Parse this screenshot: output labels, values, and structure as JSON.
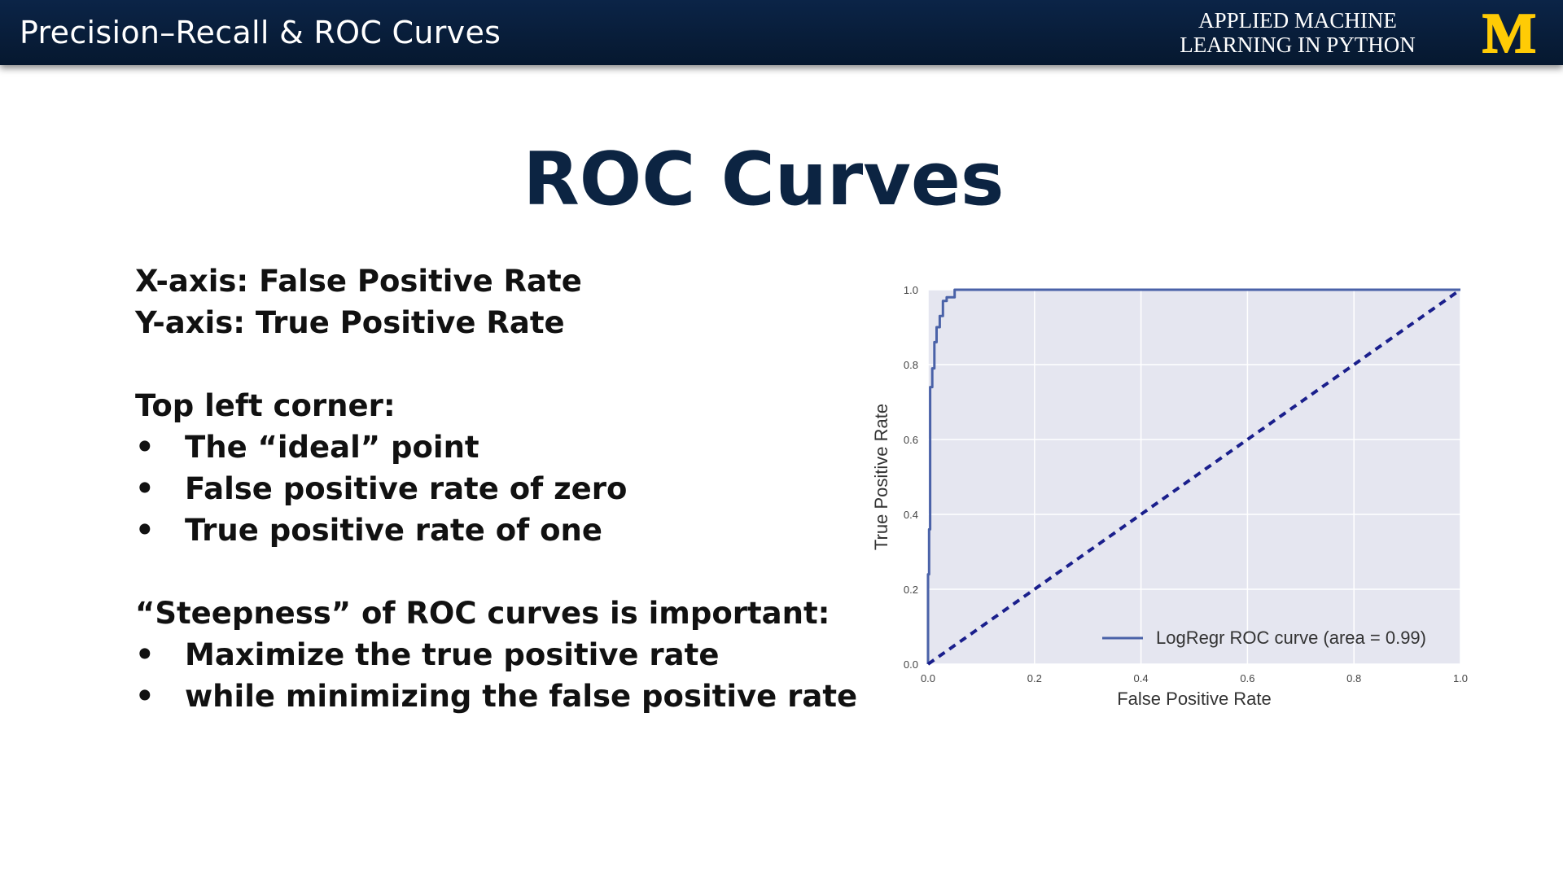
{
  "header": {
    "course_title": "Precision–Recall & ROC Curves",
    "brand_line1": "APPLIED MACHINE",
    "brand_line2": "LEARNING IN PYTHON",
    "logo_letter": "M",
    "colors": {
      "bar": "#0b2447",
      "logo": "#ffcb05",
      "title": "#0c2442"
    }
  },
  "slide": {
    "title": "ROC Curves",
    "axis_lines": [
      "X-axis:  False Positive Rate",
      "Y-axis:  True Positive Rate"
    ],
    "section1_heading": "Top left corner:",
    "section1_bullets": [
      "The “ideal” point",
      "False positive rate of zero",
      "True positive rate of one"
    ],
    "section2_heading": "“Steepness” of ROC curves is important:",
    "section2_bullets": [
      "Maximize the true positive rate",
      "while minimizing the false positive rate"
    ],
    "bullet_symbol": "•"
  },
  "chart_data": {
    "type": "line",
    "xlabel": "False Positive Rate",
    "ylabel": "True Positive Rate",
    "xlim": [
      0.0,
      1.0
    ],
    "ylim": [
      0.0,
      1.0
    ],
    "xticks": [
      "0.0",
      "0.2",
      "0.4",
      "0.6",
      "0.8",
      "1.0"
    ],
    "yticks": [
      "0.0",
      "0.2",
      "0.4",
      "0.6",
      "0.8",
      "1.0"
    ],
    "grid": true,
    "legend_position": "lower-right",
    "background": "#e5e6f0",
    "series": [
      {
        "name": "LogRegr ROC curve (area = 0.99)",
        "color": "#4a62a8",
        "style": "solid",
        "x": [
          0.0,
          0.0,
          0.002,
          0.002,
          0.004,
          0.004,
          0.008,
          0.008,
          0.012,
          0.012,
          0.016,
          0.016,
          0.022,
          0.022,
          0.028,
          0.028,
          0.035,
          0.035,
          0.05,
          0.05,
          1.0
        ],
        "y": [
          0.0,
          0.24,
          0.24,
          0.36,
          0.36,
          0.74,
          0.74,
          0.79,
          0.79,
          0.86,
          0.86,
          0.9,
          0.9,
          0.93,
          0.93,
          0.97,
          0.97,
          0.98,
          0.98,
          1.0,
          1.0
        ]
      },
      {
        "color": "#1a1f8c",
        "style": "dashed",
        "x": [
          0.0,
          1.0
        ],
        "y": [
          0.0,
          1.0
        ]
      }
    ]
  }
}
